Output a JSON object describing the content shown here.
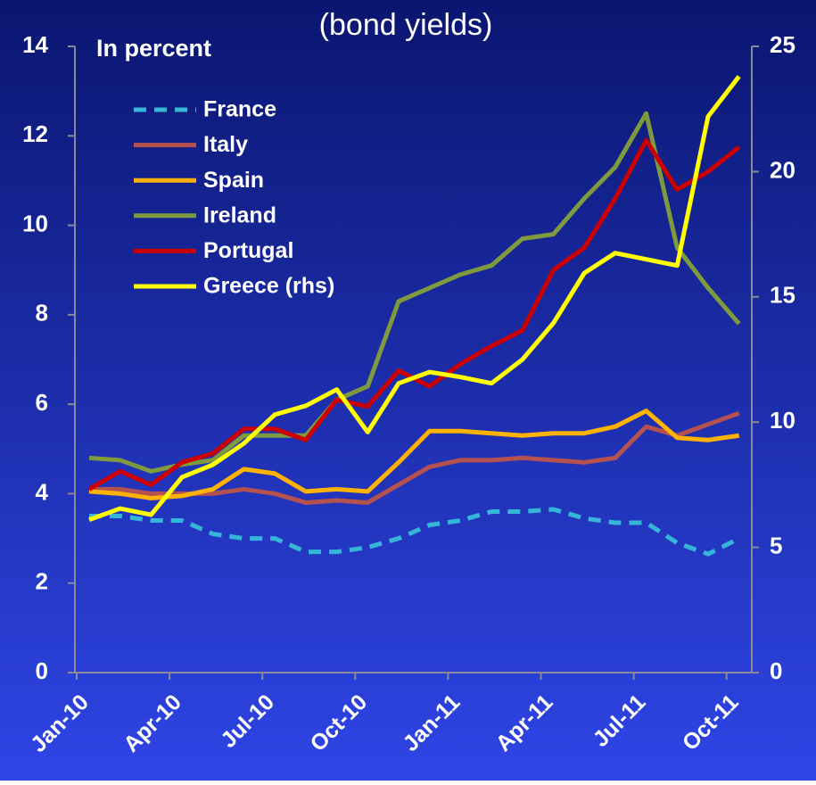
{
  "chart_data": {
    "type": "line",
    "title": "(bond yields)",
    "y_label": "In percent",
    "categories": [
      "Jan-10",
      null,
      null,
      "Apr-10",
      null,
      null,
      "Jul-10",
      null,
      null,
      "Oct-10",
      null,
      null,
      "Jan-11",
      null,
      null,
      "Apr-11",
      null,
      null,
      "Jul-11",
      null,
      null,
      "Oct-11"
    ],
    "series": [
      {
        "name": "France",
        "color": "#35b6d8",
        "dashed": true,
        "values": [
          3.5,
          3.5,
          3.4,
          3.4,
          3.1,
          3.0,
          3.0,
          2.7,
          2.7,
          2.8,
          3.0,
          3.3,
          3.4,
          3.6,
          3.6,
          3.65,
          3.45,
          3.35,
          3.35,
          2.9,
          2.65,
          3.0
        ]
      },
      {
        "name": "Italy",
        "color": "#b5524f",
        "values": [
          4.1,
          4.1,
          4.0,
          4.0,
          4.0,
          4.1,
          4.0,
          3.8,
          3.85,
          3.8,
          4.2,
          4.6,
          4.75,
          4.75,
          4.8,
          4.75,
          4.7,
          4.8,
          5.5,
          5.3,
          5.55,
          5.8
        ]
      },
      {
        "name": "Spain",
        "color": "#ffb300",
        "values": [
          4.05,
          4.0,
          3.9,
          3.95,
          4.1,
          4.55,
          4.45,
          4.05,
          4.1,
          4.05,
          4.7,
          5.4,
          5.4,
          5.35,
          5.3,
          5.35,
          5.35,
          5.5,
          5.85,
          5.25,
          5.2,
          5.3
        ]
      },
      {
        "name": "Ireland",
        "color": "#7f9a3e",
        "values": [
          4.8,
          4.75,
          4.5,
          4.65,
          4.75,
          5.3,
          5.3,
          5.3,
          6.1,
          6.4,
          8.3,
          8.6,
          8.9,
          9.1,
          9.7,
          9.8,
          10.6,
          11.3,
          12.5,
          9.5,
          8.6,
          7.8
        ]
      },
      {
        "name": "Portugal",
        "color": "#cc0000",
        "values": [
          4.1,
          4.5,
          4.2,
          4.7,
          4.9,
          5.45,
          5.45,
          5.2,
          6.1,
          5.95,
          6.75,
          6.4,
          6.9,
          7.3,
          7.65,
          9.0,
          9.5,
          10.6,
          11.9,
          10.8,
          11.2,
          11.75
        ]
      },
      {
        "name": "Greece (rhs)",
        "color": "#ffff00",
        "axis": "y2",
        "values": [
          6.1,
          6.55,
          6.3,
          7.8,
          8.3,
          9.15,
          10.3,
          10.65,
          11.3,
          9.6,
          11.55,
          12.0,
          11.8,
          11.55,
          12.5,
          13.95,
          15.95,
          16.75,
          16.5,
          16.25,
          22.2,
          23.8
        ]
      }
    ],
    "ylim": [
      0,
      14
    ],
    "yticks": [
      0,
      2,
      4,
      6,
      8,
      10,
      12,
      14
    ],
    "y2lim": [
      0,
      25
    ],
    "y2ticks": [
      0,
      5,
      10,
      15,
      20,
      25
    ],
    "legend": "upper left"
  }
}
